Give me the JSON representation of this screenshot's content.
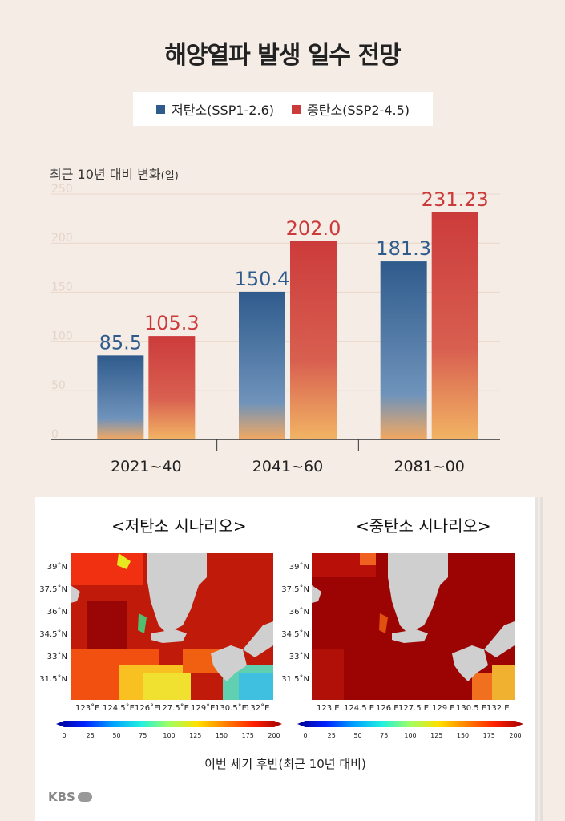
{
  "title": "해양열파 발생 일수 전망",
  "legend": {
    "low": "저탄소(SSP1-2.6)",
    "mid": "중탄소(SSP2-4.5)"
  },
  "ylabel_main": "최근 10년 대비 변화",
  "ylabel_unit": "(일)",
  "chart_data": {
    "type": "bar",
    "categories": [
      "2021~40",
      "2041~60",
      "2081~00"
    ],
    "series": [
      {
        "name": "저탄소(SSP1-2.6)",
        "values": [
          85.5,
          150.4,
          181.3
        ],
        "labels": [
          "85.5",
          "150.4",
          "181.3"
        ],
        "color": "#2f5b8c"
      },
      {
        "name": "중탄소(SSP2-4.5)",
        "values": [
          105.3,
          202.0,
          231.23
        ],
        "labels": [
          "105.3",
          "202.0",
          "231.23"
        ],
        "color": "#cc3b3b"
      }
    ],
    "yticks": [
      "250",
      "200",
      "150",
      "100",
      "50",
      "0"
    ],
    "ylim": [
      0,
      250
    ],
    "grid": true,
    "legend_position": "top"
  },
  "maps": {
    "left_title": "<저탄소 시나리오>",
    "right_title": "<중탄소 시나리오>",
    "lat_labels": [
      "39˚N",
      "37.5˚N",
      "36˚N",
      "34.5˚N",
      "33˚N",
      "31.5˚N"
    ],
    "lon_labels_left": [
      "123˚E",
      "124.5˚E",
      "126˚E",
      "127.5˚E",
      "129˚E",
      "130.5˚E",
      "132˚E"
    ],
    "lon_labels_right": [
      "123 E",
      "124.5 E",
      "126 E",
      "127.5 E",
      "129 E",
      "130.5 E",
      "132 E"
    ],
    "colorbar_ticks": [
      "0",
      "25",
      "50",
      "75",
      "100",
      "125",
      "150",
      "175",
      "200"
    ],
    "caption": "이번 세기 후반(최근 10년 대비)"
  },
  "logo": "KBS"
}
